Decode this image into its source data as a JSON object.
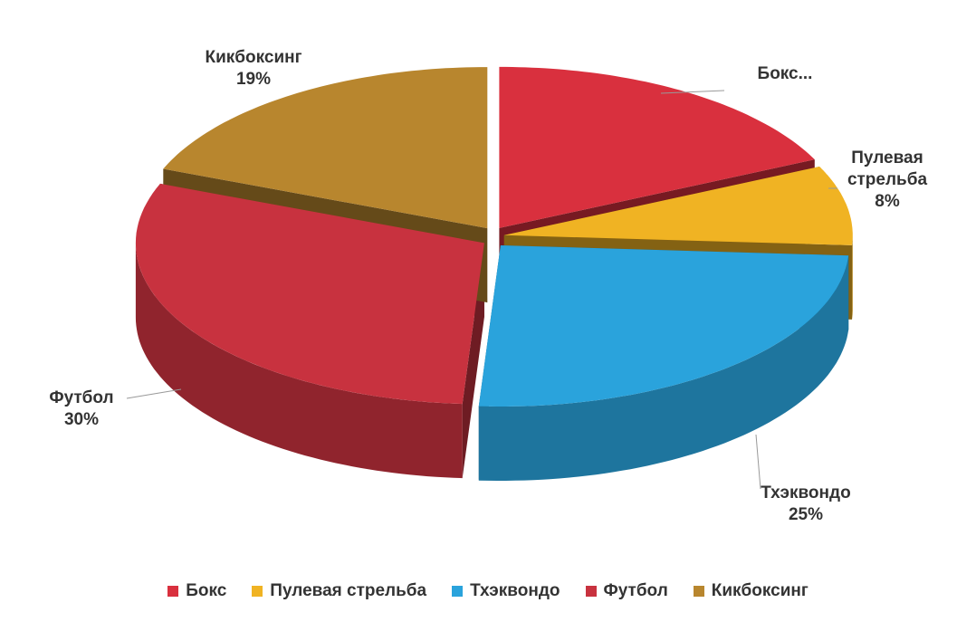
{
  "chart_data": {
    "type": "pie3d",
    "categories": [
      "Бокс",
      "Пулевая стрельба",
      "Тхэквондо",
      "Футбол",
      "Кикбоксинг"
    ],
    "values": [
      18,
      8,
      25,
      30,
      19
    ],
    "label_names": [
      "Бокс...",
      "Пулевая стрельба",
      "Тхэквондо",
      "Футбол",
      "Кикбоксинг"
    ],
    "value_labels": [
      null,
      "8%",
      "25%",
      "30%",
      "19%"
    ],
    "colors": [
      "#d9303e",
      "#f0b323",
      "#2aa3dc",
      "#c8323f",
      "#b8862e"
    ],
    "legend": "bottom"
  }
}
